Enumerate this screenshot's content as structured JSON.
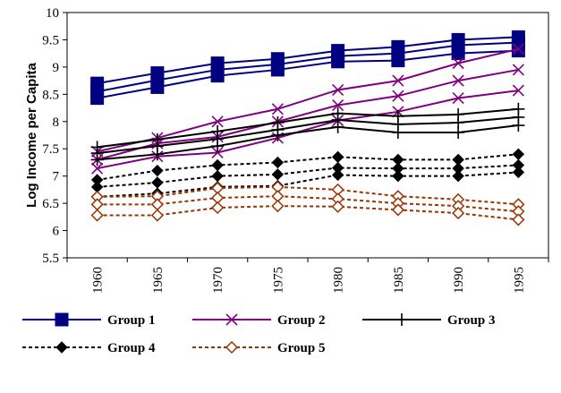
{
  "chart_data": {
    "type": "line",
    "x": [
      "1960",
      "1965",
      "1970",
      "1975",
      "1980",
      "1985",
      "1990",
      "1995"
    ],
    "ylabel": "Log Income per Capita",
    "xlabel": "",
    "title": "",
    "ylim": [
      5.5,
      10
    ],
    "yticks": [
      "5.5",
      "6",
      "6.5",
      "7",
      "7.5",
      "8",
      "8.5",
      "9",
      "9.5",
      "10"
    ],
    "grid": false,
    "legend_position": "bottom",
    "groups": [
      {
        "name": "Group 1",
        "color": "#000080",
        "dash": "solid",
        "marker": "filled-square",
        "series": [
          [
            8.7,
            8.89,
            9.07,
            9.15,
            9.3,
            9.37,
            9.5,
            9.55
          ],
          [
            8.55,
            8.76,
            8.95,
            9.05,
            9.2,
            9.25,
            9.4,
            9.45
          ],
          [
            8.43,
            8.63,
            8.84,
            8.95,
            9.1,
            9.12,
            9.25,
            9.3
          ]
        ]
      },
      {
        "name": "Group 2",
        "color": "#800080",
        "dash": "solid",
        "marker": "x",
        "series": [
          [
            7.45,
            7.7,
            8.0,
            8.23,
            8.58,
            8.75,
            9.07,
            9.33
          ],
          [
            7.3,
            7.6,
            7.72,
            8.0,
            8.3,
            8.47,
            8.75,
            8.95
          ],
          [
            7.14,
            7.36,
            7.43,
            7.7,
            8.02,
            8.18,
            8.43,
            8.57
          ]
        ]
      },
      {
        "name": "Group 3",
        "color": "#000000",
        "dash": "solid",
        "marker": "plus",
        "series": [
          [
            7.53,
            7.67,
            7.82,
            7.98,
            8.15,
            8.1,
            8.13,
            8.23
          ],
          [
            7.42,
            7.55,
            7.68,
            7.85,
            8.03,
            7.95,
            7.98,
            8.08
          ],
          [
            7.3,
            7.4,
            7.55,
            7.75,
            7.9,
            7.8,
            7.8,
            7.93
          ]
        ]
      },
      {
        "name": "Group 4",
        "color": "#000000",
        "dash": "dotted",
        "marker": "filled-diamond",
        "series": [
          [
            6.93,
            7.1,
            7.2,
            7.25,
            7.35,
            7.3,
            7.3,
            7.4
          ],
          [
            6.8,
            6.88,
            7.0,
            7.03,
            7.15,
            7.14,
            7.14,
            7.2
          ],
          [
            6.62,
            6.68,
            6.8,
            6.82,
            7.02,
            7.0,
            7.0,
            7.07
          ]
        ]
      },
      {
        "name": "Group 5",
        "color": "#993300",
        "dash": "dotted",
        "marker": "open-diamond",
        "series": [
          [
            6.62,
            6.63,
            6.78,
            6.8,
            6.75,
            6.63,
            6.57,
            6.48
          ],
          [
            6.48,
            6.48,
            6.6,
            6.63,
            6.58,
            6.5,
            6.45,
            6.35
          ],
          [
            6.28,
            6.28,
            6.42,
            6.45,
            6.44,
            6.38,
            6.32,
            6.2
          ]
        ]
      }
    ]
  }
}
